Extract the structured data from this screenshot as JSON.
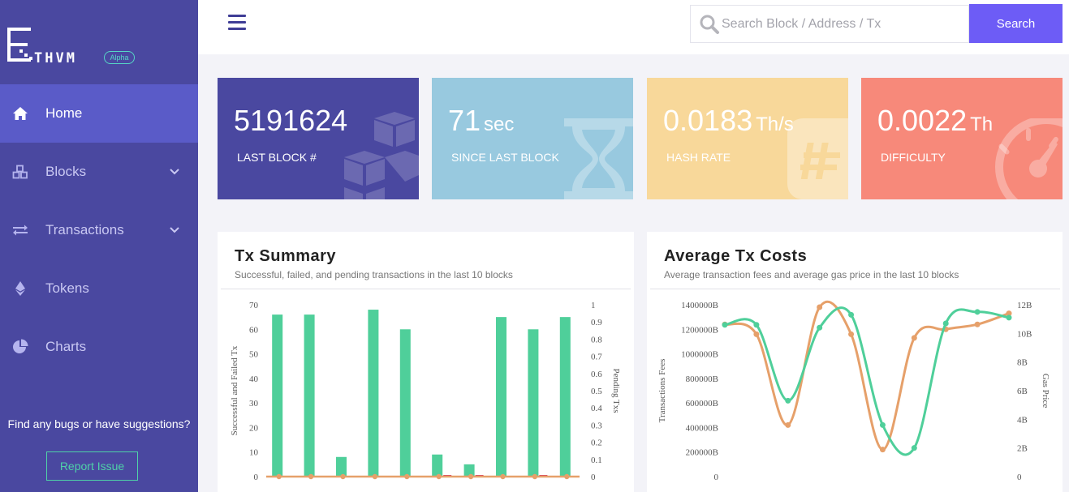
{
  "logo": {
    "text": "THVM",
    "badge": "Alpha"
  },
  "nav": [
    {
      "label": "Home",
      "icon": "home-icon",
      "active": true
    },
    {
      "label": "Blocks",
      "icon": "cubes-icon",
      "chevron": true
    },
    {
      "label": "Transactions",
      "icon": "exchange-icon",
      "chevron": true
    },
    {
      "label": "Tokens",
      "icon": "ethereum-icon"
    },
    {
      "label": "Charts",
      "icon": "pie-chart-icon"
    }
  ],
  "feedback": {
    "text": "Find any bugs or have suggestions?",
    "button": "Report Issue"
  },
  "search": {
    "placeholder": "Search Block / Address / Tx",
    "button": "Search"
  },
  "stats": [
    {
      "value": "5191624",
      "unit": "",
      "label": "LAST BLOCK #",
      "color": "#4a48a0",
      "icon": "cubes-icon"
    },
    {
      "value": "71",
      "unit": "sec",
      "label": "SINCE LAST BLOCK",
      "color": "#98c9df",
      "icon": "hourglass-icon"
    },
    {
      "value": "0.0183",
      "unit": "Th/s",
      "label": "HASH RATE",
      "color": "#f8d89a",
      "icon": "hash-icon"
    },
    {
      "value": "0.0022",
      "unit": "Th",
      "label": "DIFFICULTY",
      "color": "#f7897a",
      "icon": "speedometer-icon"
    }
  ],
  "panels": {
    "tx_summary": {
      "title": "Tx Summary",
      "subtitle": "Successful, failed, and pending transactions in the last 10 blocks"
    },
    "tx_costs": {
      "title": "Average Tx Costs",
      "subtitle": "Average transaction fees and average gas price in the last 10 blocks"
    }
  },
  "chart_data": [
    {
      "type": "bar",
      "ylabel": "Successful and Failed Tx",
      "y2label": "Pending Txs",
      "ylim": [
        0,
        70
      ],
      "y2lim": [
        0,
        1
      ],
      "yticks": [
        "0",
        "10",
        "20",
        "30",
        "40",
        "50",
        "60",
        "70"
      ],
      "y2ticks": [
        "0",
        "0.1",
        "0.2",
        "0.3",
        "0.4",
        "0.5",
        "0.6",
        "0.7",
        "0.8",
        "0.9",
        "1"
      ],
      "series": [
        {
          "values": [
            66,
            66,
            8,
            68,
            60,
            9,
            5,
            65,
            60,
            65
          ],
          "color": "#4fcf9a"
        },
        {
          "values": [
            0,
            0,
            0,
            0,
            0,
            1,
            1,
            0,
            1,
            0
          ],
          "color": "#d9435c"
        },
        {
          "values": [
            0,
            0,
            0,
            0,
            0,
            0,
            0,
            0,
            0,
            0
          ],
          "color": "#e6a06a"
        }
      ]
    },
    {
      "type": "line",
      "ylabel": "Transactions Fees",
      "y2label": "Gas Price",
      "ylim": [
        0,
        1400000
      ],
      "y2lim": [
        0,
        12
      ],
      "yticks": [
        "0",
        "200000B",
        "400000B",
        "600000B",
        "800000B",
        "1000000B",
        "1200000B",
        "1400000B"
      ],
      "y2ticks": [
        "0",
        "2B",
        "4B",
        "6B",
        "8B",
        "10B",
        "12B"
      ],
      "series": [
        {
          "axis": "left",
          "color": "#e6a06a",
          "values": [
            1240000,
            1160000,
            420000,
            1380000,
            1160000,
            220000,
            1130000,
            1200000,
            1240000,
            1330000
          ]
        },
        {
          "axis": "right",
          "color": "#4fcf9a",
          "values": [
            10.6,
            10.6,
            5.3,
            10.4,
            11.3,
            3.6,
            2.0,
            10.7,
            11.5,
            11.1
          ]
        }
      ]
    }
  ]
}
